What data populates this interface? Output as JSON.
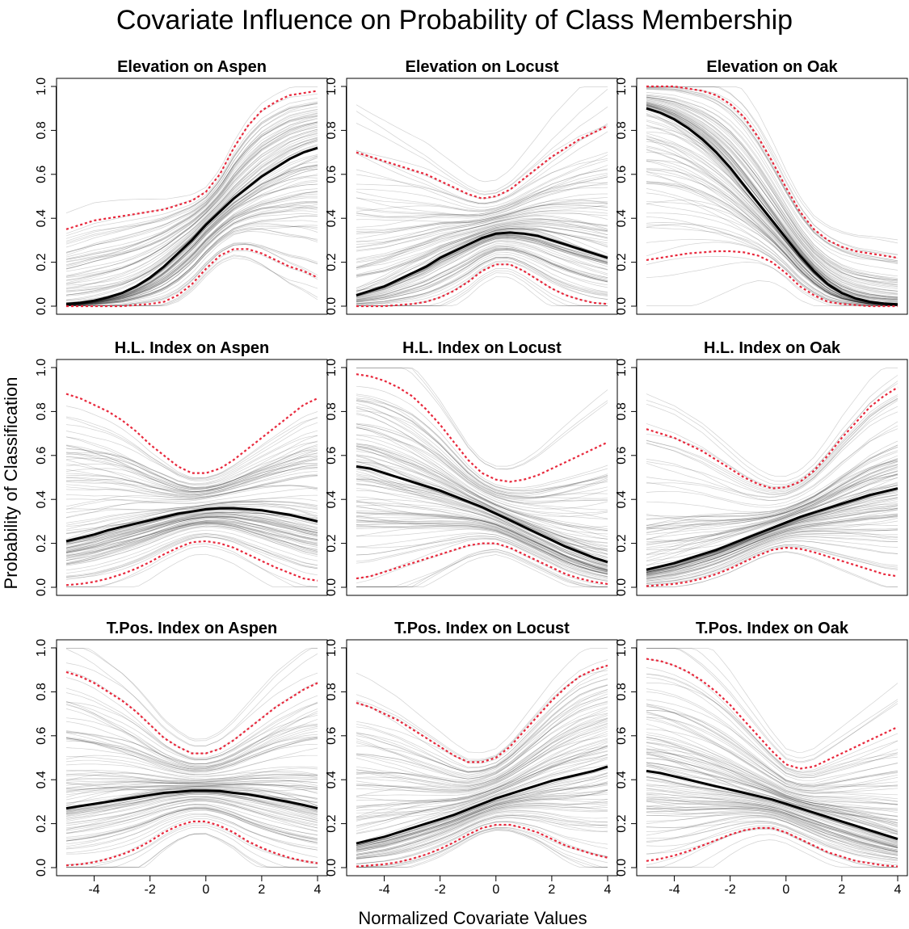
{
  "figure": {
    "title": "Covariate Influence on Probability of Class Membership",
    "xlabel": "Normalized Covariate Values",
    "ylabel": "Probability of Classification"
  },
  "colors": {
    "mean_line": "#000000",
    "interval_line": "#e8283c",
    "sample_line": "#000000",
    "frame": "#000000"
  },
  "chart_data": [
    {
      "type": "line",
      "title": "Elevation on Aspen",
      "xlim": [
        -5,
        4
      ],
      "ylim": [
        0,
        1
      ],
      "x_ticks": [
        -4,
        -2,
        0,
        2,
        4
      ],
      "y_ticks": [
        0.0,
        0.2,
        0.4,
        0.6,
        0.8,
        1.0
      ],
      "x": [
        -5,
        -4.5,
        -4,
        -3.5,
        -3,
        -2.5,
        -2,
        -1.5,
        -1,
        -0.5,
        0,
        0.5,
        1,
        1.5,
        2,
        2.5,
        3,
        3.5,
        4
      ],
      "series": [
        {
          "role": "mean",
          "values": [
            0.01,
            0.015,
            0.025,
            0.04,
            0.06,
            0.09,
            0.13,
            0.18,
            0.24,
            0.3,
            0.37,
            0.43,
            0.49,
            0.54,
            0.59,
            0.63,
            0.67,
            0.7,
            0.72
          ]
        },
        {
          "role": "upper",
          "values": [
            0.35,
            0.37,
            0.39,
            0.4,
            0.41,
            0.42,
            0.43,
            0.44,
            0.46,
            0.48,
            0.52,
            0.6,
            0.72,
            0.82,
            0.89,
            0.93,
            0.96,
            0.97,
            0.98
          ]
        },
        {
          "role": "lower",
          "values": [
            0.0,
            0.0,
            0.0,
            0.0,
            0.0,
            0.005,
            0.01,
            0.02,
            0.05,
            0.1,
            0.17,
            0.23,
            0.26,
            0.26,
            0.24,
            0.21,
            0.18,
            0.16,
            0.13
          ]
        }
      ]
    },
    {
      "type": "line",
      "title": "Elevation on Locust",
      "xlim": [
        -5,
        4
      ],
      "ylim": [
        0,
        1
      ],
      "x_ticks": [
        -4,
        -2,
        0,
        2,
        4
      ],
      "y_ticks": [
        0.0,
        0.2,
        0.4,
        0.6,
        0.8,
        1.0
      ],
      "x": [
        -5,
        -4.5,
        -4,
        -3.5,
        -3,
        -2.5,
        -2,
        -1.5,
        -1,
        -0.5,
        0,
        0.5,
        1,
        1.5,
        2,
        2.5,
        3,
        3.5,
        4
      ],
      "series": [
        {
          "role": "mean",
          "values": [
            0.05,
            0.07,
            0.09,
            0.12,
            0.15,
            0.18,
            0.22,
            0.25,
            0.28,
            0.31,
            0.33,
            0.335,
            0.33,
            0.32,
            0.3,
            0.28,
            0.26,
            0.24,
            0.22
          ]
        },
        {
          "role": "upper",
          "values": [
            0.7,
            0.68,
            0.66,
            0.64,
            0.62,
            0.6,
            0.57,
            0.54,
            0.51,
            0.49,
            0.5,
            0.53,
            0.58,
            0.63,
            0.68,
            0.72,
            0.76,
            0.79,
            0.82
          ]
        },
        {
          "role": "lower",
          "values": [
            0.0,
            0.0,
            0.0,
            0.005,
            0.01,
            0.02,
            0.04,
            0.07,
            0.11,
            0.16,
            0.19,
            0.19,
            0.16,
            0.12,
            0.08,
            0.05,
            0.03,
            0.015,
            0.01
          ]
        }
      ]
    },
    {
      "type": "line",
      "title": "Elevation on Oak",
      "xlim": [
        -5,
        4
      ],
      "ylim": [
        0,
        1
      ],
      "x_ticks": [
        -4,
        -2,
        0,
        2,
        4
      ],
      "y_ticks": [
        0.0,
        0.2,
        0.4,
        0.6,
        0.8,
        1.0
      ],
      "x": [
        -5,
        -4.5,
        -4,
        -3.5,
        -3,
        -2.5,
        -2,
        -1.5,
        -1,
        -0.5,
        0,
        0.5,
        1,
        1.5,
        2,
        2.5,
        3,
        3.5,
        4
      ],
      "series": [
        {
          "role": "mean",
          "values": [
            0.9,
            0.88,
            0.85,
            0.81,
            0.76,
            0.7,
            0.63,
            0.55,
            0.47,
            0.39,
            0.31,
            0.23,
            0.16,
            0.1,
            0.06,
            0.035,
            0.02,
            0.012,
            0.008
          ]
        },
        {
          "role": "upper",
          "values": [
            1.0,
            1.0,
            1.0,
            0.99,
            0.98,
            0.96,
            0.92,
            0.86,
            0.77,
            0.66,
            0.54,
            0.43,
            0.35,
            0.3,
            0.27,
            0.25,
            0.24,
            0.23,
            0.22
          ]
        },
        {
          "role": "lower",
          "values": [
            0.21,
            0.22,
            0.23,
            0.24,
            0.245,
            0.25,
            0.25,
            0.245,
            0.23,
            0.2,
            0.15,
            0.09,
            0.05,
            0.02,
            0.01,
            0.005,
            0.0,
            0.0,
            0.0
          ]
        }
      ]
    },
    {
      "type": "line",
      "title": "H.L. Index on Aspen",
      "xlim": [
        -5,
        4
      ],
      "ylim": [
        0,
        1
      ],
      "x_ticks": [
        -4,
        -2,
        0,
        2,
        4
      ],
      "y_ticks": [
        0.0,
        0.2,
        0.4,
        0.6,
        0.8,
        1.0
      ],
      "x": [
        -5,
        -4.5,
        -4,
        -3.5,
        -3,
        -2.5,
        -2,
        -1.5,
        -1,
        -0.5,
        0,
        0.5,
        1,
        1.5,
        2,
        2.5,
        3,
        3.5,
        4
      ],
      "series": [
        {
          "role": "mean",
          "values": [
            0.21,
            0.225,
            0.24,
            0.26,
            0.275,
            0.29,
            0.305,
            0.32,
            0.335,
            0.345,
            0.355,
            0.36,
            0.36,
            0.355,
            0.35,
            0.34,
            0.33,
            0.315,
            0.3
          ]
        },
        {
          "role": "upper",
          "values": [
            0.88,
            0.86,
            0.83,
            0.8,
            0.76,
            0.71,
            0.65,
            0.6,
            0.55,
            0.52,
            0.52,
            0.54,
            0.58,
            0.63,
            0.68,
            0.73,
            0.78,
            0.83,
            0.86
          ]
        },
        {
          "role": "lower",
          "values": [
            0.01,
            0.015,
            0.025,
            0.04,
            0.06,
            0.085,
            0.115,
            0.15,
            0.18,
            0.205,
            0.21,
            0.2,
            0.18,
            0.15,
            0.12,
            0.09,
            0.065,
            0.04,
            0.03
          ]
        }
      ]
    },
    {
      "type": "line",
      "title": "H.L. Index on Locust",
      "xlim": [
        -5,
        4
      ],
      "ylim": [
        0,
        1
      ],
      "x_ticks": [
        -4,
        -2,
        0,
        2,
        4
      ],
      "y_ticks": [
        0.0,
        0.2,
        0.4,
        0.6,
        0.8,
        1.0
      ],
      "x": [
        -5,
        -4.5,
        -4,
        -3.5,
        -3,
        -2.5,
        -2,
        -1.5,
        -1,
        -0.5,
        0,
        0.5,
        1,
        1.5,
        2,
        2.5,
        3,
        3.5,
        4
      ],
      "series": [
        {
          "role": "mean",
          "values": [
            0.55,
            0.54,
            0.52,
            0.5,
            0.48,
            0.46,
            0.44,
            0.415,
            0.39,
            0.365,
            0.335,
            0.305,
            0.275,
            0.245,
            0.215,
            0.185,
            0.16,
            0.135,
            0.115
          ]
        },
        {
          "role": "upper",
          "values": [
            0.97,
            0.96,
            0.94,
            0.91,
            0.87,
            0.81,
            0.74,
            0.66,
            0.58,
            0.52,
            0.49,
            0.48,
            0.49,
            0.51,
            0.54,
            0.57,
            0.6,
            0.63,
            0.66
          ]
        },
        {
          "role": "lower",
          "values": [
            0.04,
            0.05,
            0.07,
            0.09,
            0.11,
            0.13,
            0.15,
            0.17,
            0.19,
            0.2,
            0.2,
            0.18,
            0.15,
            0.12,
            0.09,
            0.06,
            0.04,
            0.025,
            0.015
          ]
        }
      ]
    },
    {
      "type": "line",
      "title": "H.L. Index on Oak",
      "xlim": [
        -5,
        4
      ],
      "ylim": [
        0,
        1
      ],
      "x_ticks": [
        -4,
        -2,
        0,
        2,
        4
      ],
      "y_ticks": [
        0.0,
        0.2,
        0.4,
        0.6,
        0.8,
        1.0
      ],
      "x": [
        -5,
        -4.5,
        -4,
        -3.5,
        -3,
        -2.5,
        -2,
        -1.5,
        -1,
        -0.5,
        0,
        0.5,
        1,
        1.5,
        2,
        2.5,
        3,
        3.5,
        4
      ],
      "series": [
        {
          "role": "mean",
          "values": [
            0.08,
            0.095,
            0.11,
            0.13,
            0.15,
            0.17,
            0.195,
            0.22,
            0.245,
            0.27,
            0.295,
            0.32,
            0.34,
            0.36,
            0.38,
            0.4,
            0.42,
            0.435,
            0.45
          ]
        },
        {
          "role": "upper",
          "values": [
            0.72,
            0.7,
            0.68,
            0.65,
            0.62,
            0.58,
            0.54,
            0.5,
            0.47,
            0.45,
            0.455,
            0.48,
            0.53,
            0.6,
            0.68,
            0.75,
            0.82,
            0.87,
            0.91
          ]
        },
        {
          "role": "lower",
          "values": [
            0.005,
            0.01,
            0.015,
            0.025,
            0.04,
            0.06,
            0.085,
            0.115,
            0.145,
            0.17,
            0.18,
            0.175,
            0.16,
            0.14,
            0.12,
            0.1,
            0.08,
            0.06,
            0.05
          ]
        }
      ]
    },
    {
      "type": "line",
      "title": "T.Pos. Index on Aspen",
      "xlim": [
        -5,
        4
      ],
      "ylim": [
        0,
        1
      ],
      "x_ticks": [
        -4,
        -2,
        0,
        2,
        4
      ],
      "y_ticks": [
        0.0,
        0.2,
        0.4,
        0.6,
        0.8,
        1.0
      ],
      "x": [
        -5,
        -4.5,
        -4,
        -3.5,
        -3,
        -2.5,
        -2,
        -1.5,
        -1,
        -0.5,
        0,
        0.5,
        1,
        1.5,
        2,
        2.5,
        3,
        3.5,
        4
      ],
      "series": [
        {
          "role": "mean",
          "values": [
            0.27,
            0.28,
            0.29,
            0.3,
            0.31,
            0.32,
            0.33,
            0.34,
            0.345,
            0.35,
            0.35,
            0.348,
            0.34,
            0.333,
            0.322,
            0.31,
            0.298,
            0.285,
            0.27
          ]
        },
        {
          "role": "upper",
          "values": [
            0.89,
            0.87,
            0.84,
            0.8,
            0.76,
            0.71,
            0.65,
            0.59,
            0.55,
            0.52,
            0.52,
            0.54,
            0.58,
            0.63,
            0.68,
            0.73,
            0.77,
            0.81,
            0.84
          ]
        },
        {
          "role": "lower",
          "values": [
            0.01,
            0.015,
            0.025,
            0.04,
            0.06,
            0.085,
            0.12,
            0.16,
            0.19,
            0.21,
            0.21,
            0.19,
            0.16,
            0.12,
            0.09,
            0.065,
            0.045,
            0.03,
            0.02
          ]
        }
      ]
    },
    {
      "type": "line",
      "title": "T.Pos. Index on Locust",
      "xlim": [
        -5,
        4
      ],
      "ylim": [
        0,
        1
      ],
      "x_ticks": [
        -4,
        -2,
        0,
        2,
        4
      ],
      "y_ticks": [
        0.0,
        0.2,
        0.4,
        0.6,
        0.8,
        1.0
      ],
      "x": [
        -5,
        -4.5,
        -4,
        -3.5,
        -3,
        -2.5,
        -2,
        -1.5,
        -1,
        -0.5,
        0,
        0.5,
        1,
        1.5,
        2,
        2.5,
        3,
        3.5,
        4
      ],
      "series": [
        {
          "role": "mean",
          "values": [
            0.11,
            0.125,
            0.14,
            0.16,
            0.18,
            0.2,
            0.22,
            0.24,
            0.265,
            0.29,
            0.315,
            0.335,
            0.355,
            0.375,
            0.395,
            0.41,
            0.425,
            0.44,
            0.46
          ]
        },
        {
          "role": "upper",
          "values": [
            0.75,
            0.73,
            0.7,
            0.67,
            0.63,
            0.59,
            0.55,
            0.51,
            0.48,
            0.48,
            0.5,
            0.55,
            0.62,
            0.69,
            0.76,
            0.82,
            0.87,
            0.9,
            0.92
          ]
        },
        {
          "role": "lower",
          "values": [
            0.005,
            0.01,
            0.015,
            0.025,
            0.04,
            0.06,
            0.085,
            0.115,
            0.15,
            0.18,
            0.195,
            0.195,
            0.18,
            0.16,
            0.13,
            0.1,
            0.08,
            0.06,
            0.045
          ]
        }
      ]
    },
    {
      "type": "line",
      "title": "T.Pos. Index on Oak",
      "xlim": [
        -5,
        4
      ],
      "ylim": [
        0,
        1
      ],
      "x_ticks": [
        -4,
        -2,
        0,
        2,
        4
      ],
      "y_ticks": [
        0.0,
        0.2,
        0.4,
        0.6,
        0.8,
        1.0
      ],
      "x": [
        -5,
        -4.5,
        -4,
        -3.5,
        -3,
        -2.5,
        -2,
        -1.5,
        -1,
        -0.5,
        0,
        0.5,
        1,
        1.5,
        2,
        2.5,
        3,
        3.5,
        4
      ],
      "series": [
        {
          "role": "mean",
          "values": [
            0.44,
            0.43,
            0.415,
            0.4,
            0.385,
            0.37,
            0.355,
            0.34,
            0.325,
            0.31,
            0.29,
            0.27,
            0.25,
            0.23,
            0.21,
            0.19,
            0.17,
            0.15,
            0.13
          ]
        },
        {
          "role": "upper",
          "values": [
            0.95,
            0.94,
            0.92,
            0.89,
            0.85,
            0.8,
            0.74,
            0.67,
            0.6,
            0.53,
            0.47,
            0.45,
            0.46,
            0.49,
            0.52,
            0.55,
            0.58,
            0.61,
            0.64
          ]
        },
        {
          "role": "lower",
          "values": [
            0.03,
            0.04,
            0.055,
            0.075,
            0.1,
            0.125,
            0.15,
            0.17,
            0.18,
            0.18,
            0.16,
            0.13,
            0.1,
            0.07,
            0.05,
            0.03,
            0.02,
            0.01,
            0.005
          ]
        }
      ]
    }
  ]
}
